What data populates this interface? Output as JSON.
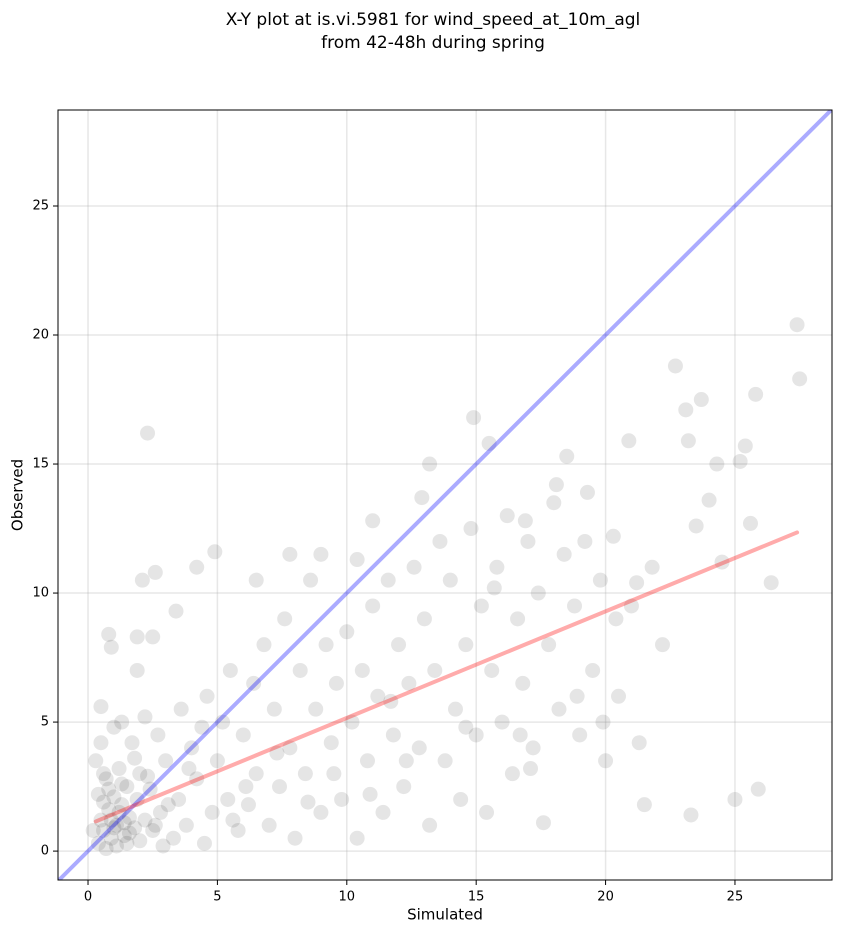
{
  "chart_data": {
    "type": "scatter",
    "title": "X-Y plot at is.vi.5981 for wind_speed_at_10m_agl",
    "subtitle": "from 42-48h during spring",
    "x_label": "Simulated",
    "y_label": "Observed",
    "xlim": [
      -1.16,
      28.75
    ],
    "ylim": [
      -1.12,
      28.72
    ],
    "xticks": [
      0,
      5,
      10,
      15,
      20,
      25
    ],
    "yticks": [
      0,
      5,
      10,
      15,
      20,
      25
    ],
    "grid": true,
    "series": [
      {
        "color": "#000000",
        "x": [
          0.3,
          0.4,
          0.5,
          0.6,
          0.7,
          0.8,
          0.9,
          1.0,
          1.1,
          1.2,
          1.3,
          1.4,
          1.5,
          1.6,
          1.7,
          1.8,
          1.9,
          2.0,
          0.5,
          1.0,
          1.3,
          0.6,
          0.9,
          1.2,
          1.5,
          2.2,
          2.5,
          2.4,
          2.8,
          3.0,
          2.7,
          2.2,
          3.3,
          3.5,
          3.8,
          4.0,
          3.6,
          4.2,
          4.5,
          4.6,
          4.8,
          5.0,
          5.2,
          5.4,
          5.5,
          5.8,
          6.0,
          6.2,
          6.4,
          6.5,
          6.8,
          7.0,
          7.2,
          7.4,
          7.6,
          7.8,
          8.0,
          8.2,
          8.4,
          8.6,
          8.8,
          9.0,
          9.2,
          9.4,
          9.6,
          9.8,
          10.0,
          10.2,
          10.4,
          10.6,
          10.8,
          11.0,
          11.2,
          11.4,
          11.6,
          11.8,
          12.0,
          12.2,
          12.4,
          12.6,
          12.8,
          13.0,
          13.2,
          13.4,
          13.6,
          13.8,
          14.0,
          14.2,
          14.4,
          14.6,
          14.8,
          15.0,
          15.2,
          15.4,
          15.6,
          15.8,
          16.0,
          16.2,
          16.4,
          16.6,
          16.8,
          17.0,
          17.2,
          17.4,
          17.6,
          17.8,
          18.0,
          18.2,
          18.4,
          18.5,
          18.8,
          19.0,
          19.2,
          19.5,
          19.8,
          20.0,
          20.3,
          20.5,
          20.9,
          21.0,
          21.3,
          21.5,
          21.8,
          22.2,
          22.7,
          23.1,
          23.2,
          23.3,
          23.5,
          23.7,
          24.0,
          24.3,
          24.5,
          25.0,
          25.2,
          25.4,
          25.6,
          25.8,
          25.9,
          26.4,
          27.4,
          27.5,
          2.3,
          2.6,
          2.1,
          4.2,
          4.9,
          0.8,
          0.9,
          0.5,
          3.4,
          14.9,
          15.5,
          13.2,
          12.9,
          11.0,
          10.4,
          9.0,
          7.8,
          6.5,
          1.9,
          2.5,
          1.9,
          0.2,
          0.4,
          0.7,
          1.1,
          1.6,
          2.0,
          2.9,
          1.3,
          0.8,
          1.8,
          2.3,
          3.1,
          0.6,
          1.4,
          1.0,
          2.6,
          3.9,
          4.4,
          5.6,
          6.1,
          7.3,
          8.5,
          9.5,
          10.9,
          12.3,
          11.7,
          14.6,
          16.7,
          18.9,
          19.9,
          17.1,
          20.4,
          21.2,
          19.3,
          18.1,
          16.9,
          15.7
        ],
        "values": [
          3.5,
          2.2,
          1.2,
          0.8,
          2.8,
          1.6,
          0.5,
          2.1,
          1.0,
          3.2,
          1.8,
          0.6,
          2.5,
          1.3,
          4.2,
          0.9,
          2.0,
          3.0,
          4.2,
          4.8,
          5.0,
          3.0,
          1.2,
          1.5,
          0.3,
          1.2,
          0.8,
          2.4,
          1.5,
          3.5,
          4.5,
          5.2,
          0.5,
          2.0,
          1.0,
          4.0,
          5.5,
          2.8,
          0.3,
          6.0,
          1.5,
          3.5,
          5.0,
          2.0,
          7.0,
          0.8,
          4.5,
          1.8,
          6.5,
          3.0,
          8.0,
          1.0,
          5.5,
          2.5,
          9.0,
          4.0,
          0.5,
          7.0,
          3.0,
          10.5,
          5.5,
          1.5,
          8.0,
          4.2,
          6.5,
          2.0,
          8.5,
          5.0,
          0.5,
          7.0,
          3.5,
          9.5,
          6.0,
          1.5,
          10.5,
          4.5,
          8.0,
          2.5,
          6.5,
          11.0,
          4.0,
          9.0,
          1.0,
          7.0,
          12.0,
          3.5,
          10.5,
          5.5,
          2.0,
          8.0,
          12.5,
          4.5,
          9.5,
          1.5,
          7.0,
          11.0,
          5.0,
          13.0,
          3.0,
          9.0,
          6.5,
          12.0,
          4.0,
          10.0,
          1.1,
          8.0,
          13.5,
          5.5,
          11.5,
          15.3,
          9.5,
          4.5,
          12.0,
          7.0,
          10.5,
          3.5,
          12.2,
          6.0,
          15.9,
          9.5,
          4.2,
          1.8,
          11.0,
          8.0,
          18.8,
          17.1,
          15.9,
          1.4,
          12.6,
          17.5,
          13.6,
          15.0,
          11.2,
          2.0,
          15.1,
          15.7,
          12.7,
          17.7,
          2.4,
          10.4,
          20.4,
          18.3,
          16.2,
          10.8,
          10.5,
          11.0,
          11.6,
          8.4,
          7.9,
          5.6,
          9.3,
          16.8,
          15.8,
          15.0,
          13.7,
          12.8,
          11.3,
          11.5,
          11.5,
          10.5,
          8.3,
          8.3,
          7.0,
          0.8,
          0.3,
          0.1,
          0.2,
          0.7,
          0.4,
          0.2,
          2.6,
          2.4,
          3.6,
          2.9,
          1.8,
          1.9,
          1.1,
          0.9,
          1.0,
          3.2,
          4.8,
          1.2,
          2.5,
          3.8,
          1.9,
          3.0,
          2.2,
          3.5,
          5.8,
          4.8,
          4.5,
          6.0,
          5.0,
          3.2,
          9.0,
          10.4,
          13.9,
          14.2,
          12.8,
          10.2
        ]
      }
    ],
    "lines": [
      {
        "color": "#0000ff",
        "x": [
          -1.16,
          28.75
        ],
        "values": [
          -1.16,
          28.75
        ]
      },
      {
        "color": "#ff0000",
        "x": [
          0.3,
          27.4
        ],
        "values": [
          1.15,
          12.35
        ]
      }
    ]
  }
}
